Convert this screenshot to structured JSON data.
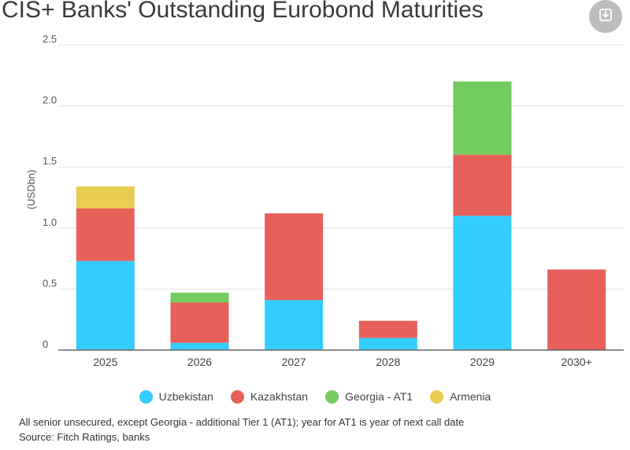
{
  "title": "CIS+ Banks' Outstanding Eurobond Maturities",
  "download_icon": "download-icon",
  "chart_data": {
    "type": "bar",
    "stacked": true,
    "categories": [
      "2025",
      "2026",
      "2027",
      "2028",
      "2029",
      "2030+"
    ],
    "ylabel": "(USDbn)",
    "ylim": [
      0,
      2.5
    ],
    "yticks": [
      0,
      0.5,
      1.0,
      1.5,
      2.0,
      2.5
    ],
    "ytick_labels": [
      "0",
      "0.5",
      "1.0",
      "1.5",
      "2.0",
      "2.5"
    ],
    "grid": true,
    "legend_position": "bottom",
    "series": [
      {
        "name": "Uzbekistan",
        "color": "#33ccff",
        "values": [
          0.73,
          0.06,
          0.41,
          0.1,
          1.1,
          0
        ]
      },
      {
        "name": "Kazakhstan",
        "color": "#e8605a",
        "values": [
          0.43,
          0.33,
          0.71,
          0.14,
          0.5,
          0.66
        ]
      },
      {
        "name": "Georgia - AT1",
        "color": "#72cc5e",
        "values": [
          0,
          0.08,
          0,
          0,
          0.6,
          0
        ]
      },
      {
        "name": "Armenia",
        "color": "#e9cd51",
        "values": [
          0.18,
          0,
          0,
          0,
          0,
          0
        ]
      }
    ]
  },
  "footnote": "All senior unsecured, except Georgia - additional Tier 1 (AT1); year for AT1 is year of next call date",
  "source": "Source: Fitch Ratings, banks"
}
